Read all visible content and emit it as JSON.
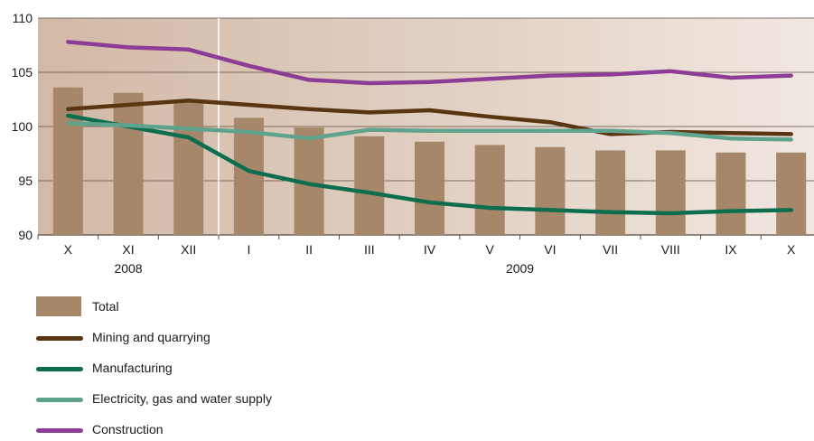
{
  "chart_data": {
    "type": "bar",
    "categories": [
      "X",
      "XI",
      "XII",
      "I",
      "II",
      "III",
      "IV",
      "V",
      "VI",
      "VII",
      "VIII",
      "IX",
      "X"
    ],
    "year_labels": [
      {
        "label": "2008",
        "from": 0,
        "to": 2
      },
      {
        "label": "2009",
        "from": 3,
        "to": 12
      }
    ],
    "ylim": [
      90,
      110
    ],
    "yticks": [
      90,
      95,
      100,
      105,
      110
    ],
    "grid": true,
    "legend_position": "bottom-left",
    "bars": {
      "name": "Total",
      "color": "#a6876a",
      "values": [
        103.6,
        103.1,
        102.5,
        100.8,
        99.9,
        99.1,
        98.6,
        98.3,
        98.1,
        97.8,
        97.8,
        97.6,
        97.6
      ]
    },
    "series": [
      {
        "name": "Mining and quarrying",
        "color": "#5a3512",
        "values": [
          101.6,
          102.0,
          102.4,
          102.0,
          101.6,
          101.3,
          101.5,
          100.9,
          100.4,
          99.3,
          99.5,
          99.4,
          99.3
        ]
      },
      {
        "name": "Manufacturing",
        "color": "#0d6e4e",
        "values": [
          101.0,
          100.0,
          99.0,
          95.9,
          94.7,
          93.9,
          93.0,
          92.5,
          92.3,
          92.1,
          92.0,
          92.2,
          92.3
        ]
      },
      {
        "name": "Electricity, gas and water supply",
        "color": "#5fa38c",
        "values": [
          100.3,
          100.1,
          99.8,
          99.5,
          98.9,
          99.7,
          99.6,
          99.6,
          99.6,
          99.6,
          99.4,
          98.9,
          98.8
        ]
      },
      {
        "name": "Construction",
        "color": "#8e3d96",
        "values": [
          107.8,
          107.3,
          107.1,
          105.6,
          104.3,
          104.0,
          104.1,
          104.4,
          104.7,
          104.8,
          105.1,
          104.5,
          104.7
        ]
      }
    ]
  }
}
